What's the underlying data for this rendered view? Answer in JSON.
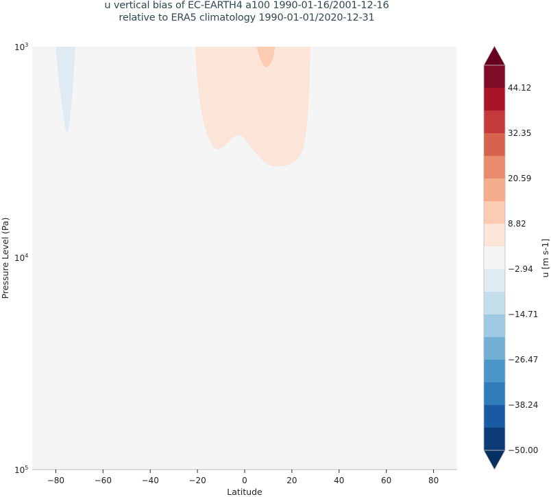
{
  "title": {
    "line1": "u vertical bias of EC-EARTH4 a100 1990-01-16/2001-12-16",
    "line2": "relative to ERA5 climatology 1990-01-01/2020-12-31"
  },
  "axes": {
    "xlabel": "Latitude",
    "ylabel": "Pressure Level (Pa)",
    "xticks": [
      "−80",
      "−60",
      "−40",
      "−20",
      "0",
      "20",
      "40",
      "60",
      "80"
    ],
    "yticks": [
      {
        "base": "10",
        "exp": "3"
      },
      {
        "base": "10",
        "exp": "4"
      },
      {
        "base": "10",
        "exp": "5"
      }
    ]
  },
  "colorbar": {
    "label": "u [m s-1]",
    "ticks": [
      "44.12",
      "32.35",
      "20.59",
      "8.82",
      "−2.94",
      "−14.71",
      "−26.47",
      "−38.24",
      "−50.00"
    ],
    "colors_top_to_bottom": [
      "#800b26",
      "#a81529",
      "#c43a3c",
      "#d7634f",
      "#ea8a6d",
      "#f5ac8a",
      "#fbcbb2",
      "#fbe4d8",
      "#f5f5f5",
      "#deebf3",
      "#c4deec",
      "#9fcae1",
      "#74b0d4",
      "#4a96c8",
      "#2f7cb9",
      "#1a5aa2",
      "#0c3b76"
    ],
    "over_color": "#67001f",
    "under_color": "#053061"
  },
  "chart_data": {
    "type": "heatmap",
    "subtype": "filled contour (latitude-pressure cross-section)",
    "title": "u vertical bias of EC-EARTH4 a100 1990-01-16/2001-12-16 relative to ERA5 climatology 1990-01-01/2020-12-31",
    "xlabel": "Latitude",
    "ylabel": "Pressure Level (Pa)",
    "xlim": [
      -90,
      90
    ],
    "ylim": [
      100000,
      1000
    ],
    "yscale": "log",
    "colorbar_label": "u [m s-1]",
    "levels": [
      -50.0,
      -44.12,
      -38.24,
      -32.35,
      -26.47,
      -20.59,
      -14.71,
      -8.82,
      -2.94,
      2.94,
      8.82,
      14.71,
      20.59,
      26.47,
      32.35,
      38.24,
      44.12,
      50.0
    ],
    "regions": [
      {
        "description": "background bias near zero",
        "range": [
          -2.94,
          2.94
        ]
      },
      {
        "description": "weak negative bias tongue near 75S, from 1000 Pa down to ~2500 Pa",
        "lat_center": -75,
        "range": [
          -8.82,
          -2.94
        ]
      },
      {
        "description": "broad weak positive bias from ~22S to ~28N, 1000 Pa down to ~3500 Pa",
        "lat_range": [
          -22,
          28
        ],
        "range": [
          2.94,
          8.82
        ]
      },
      {
        "description": "stronger positive bias core near 8N at top (1000-1300 Pa)",
        "lat_center": 8,
        "range": [
          8.82,
          14.71
        ]
      }
    ]
  }
}
